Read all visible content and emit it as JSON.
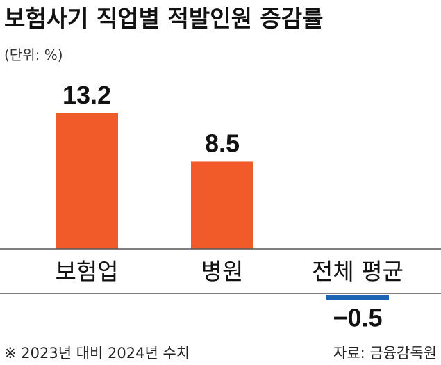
{
  "chart_data": {
    "type": "bar",
    "title": "보험사기 직업별 적발인원 증감률",
    "unit": "(단위: %)",
    "categories": [
      "보험업",
      "병원",
      "전체 평균"
    ],
    "values": [
      13.2,
      8.5,
      -0.5
    ],
    "value_labels": [
      "13.2",
      "8.5",
      "−0.5"
    ],
    "ylim": [
      -3,
      14.5
    ],
    "grid": false,
    "legend": "none",
    "colors": {
      "positive": "#f15a29",
      "negative": "#1f63b5",
      "axis": "#555555",
      "text": "#111111"
    }
  },
  "footer": {
    "note": "※ 2023년 대비 2024년 수치",
    "source": "자료: 금융감독원"
  }
}
